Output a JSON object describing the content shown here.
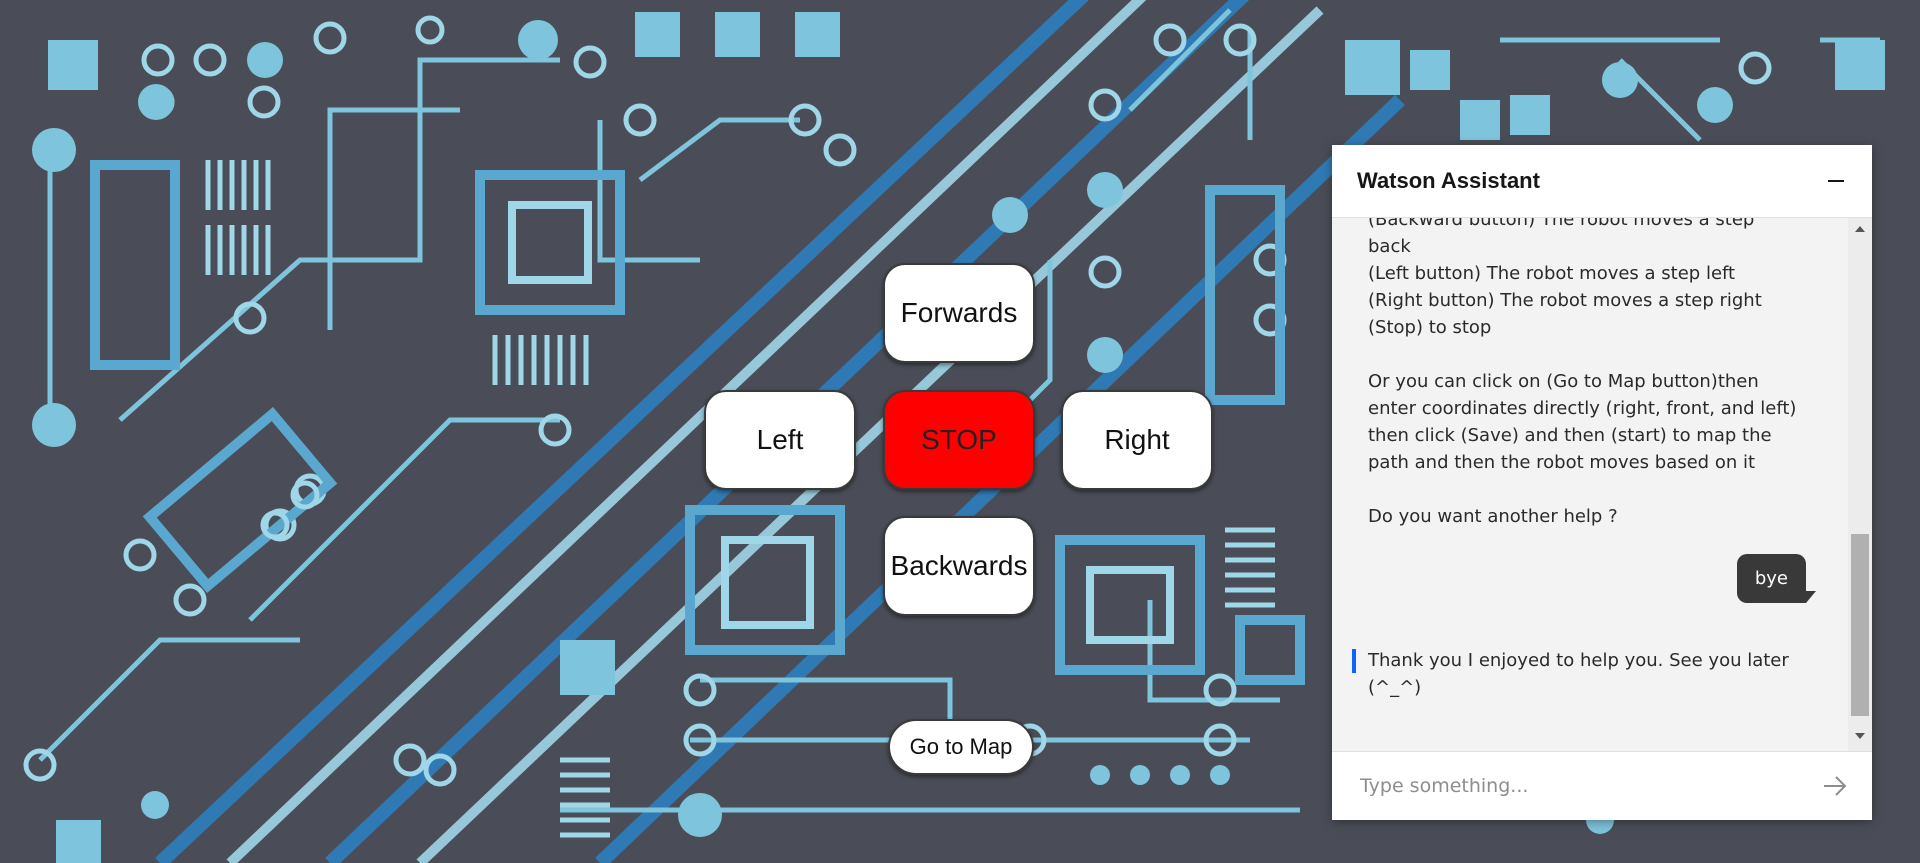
{
  "controls": {
    "forward_label": "Forwards",
    "left_label": "Left",
    "stop_label": "STOP",
    "right_label": "Right",
    "backward_label": "Backwards",
    "map_label": "Go to Map"
  },
  "chat": {
    "title": "Watson Assistant",
    "messages": {
      "bot_lines": [
        "(Backward button) The robot moves a step",
        "back",
        "(Left button) The robot moves a step left",
        "(Right button) The robot moves a step right",
        "(Stop) to stop"
      ],
      "bot_paragraph": [
        "Or you can click on (Go to Map button)then",
        "enter coordinates directly (right, front, and left)",
        "then click (Save) and then (start) to map the",
        "path and then the robot moves based on it"
      ],
      "bot_question": "Do you want another help ?",
      "user_reply": "bye",
      "bot_final": [
        "Thank you I enjoyed to help you. See you later",
        "(^_^)"
      ]
    },
    "input_placeholder": "Type something..."
  },
  "colors": {
    "stop_button": "#ff0000",
    "background": "#4a4d57",
    "user_bubble": "#393939",
    "accent": "#0f62fe"
  }
}
